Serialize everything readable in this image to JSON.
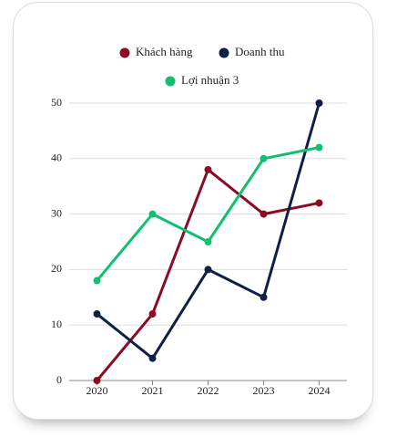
{
  "chart_data": {
    "type": "line",
    "categories": [
      "2020",
      "2021",
      "2022",
      "2023",
      "2024"
    ],
    "series": [
      {
        "name": "Khách hàng",
        "color": "#8b0a25",
        "values": [
          0,
          12,
          38,
          30,
          32
        ]
      },
      {
        "name": "Doanh thu",
        "color": "#0f1f45",
        "values": [
          12,
          4,
          20,
          15,
          50
        ]
      },
      {
        "name": "Lợi nhuận 3",
        "color": "#10c070",
        "values": [
          18,
          30,
          25,
          40,
          42
        ]
      }
    ],
    "ylim": [
      0,
      50
    ],
    "yticks": [
      0,
      10,
      20,
      30,
      40,
      50
    ],
    "grid": true
  }
}
